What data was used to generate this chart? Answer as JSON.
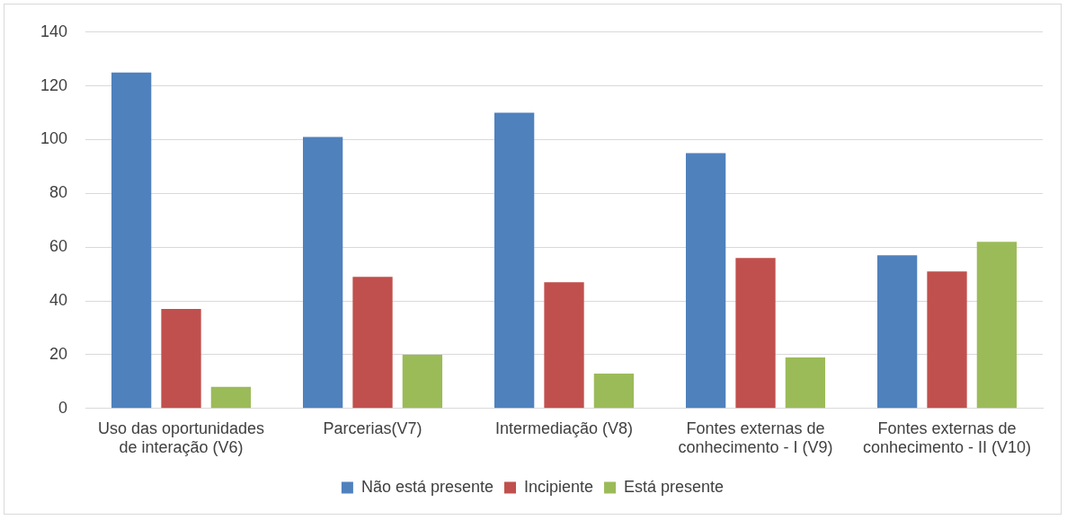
{
  "chart_data": {
    "type": "bar",
    "categories": [
      "Uso das oportunidades de interação (V6)",
      "Parcerias(V7)",
      "Intermediação (V8)",
      "Fontes externas de conhecimento - I (V9)",
      "Fontes externas de conhecimento - II (V10)"
    ],
    "series": [
      {
        "name": "Não está presente",
        "color": "#4f81bd",
        "values": [
          125,
          101,
          110,
          95,
          57
        ]
      },
      {
        "name": "Incipiente",
        "color": "#c0504d",
        "values": [
          37,
          49,
          47,
          56,
          51
        ]
      },
      {
        "name": "Está presente",
        "color": "#9bbb59",
        "values": [
          8,
          20,
          13,
          19,
          62
        ]
      }
    ],
    "ylim": [
      0,
      140
    ],
    "yticks": [
      0,
      20,
      40,
      60,
      80,
      100,
      120,
      140
    ],
    "grid": "y",
    "legend": "bottom"
  }
}
